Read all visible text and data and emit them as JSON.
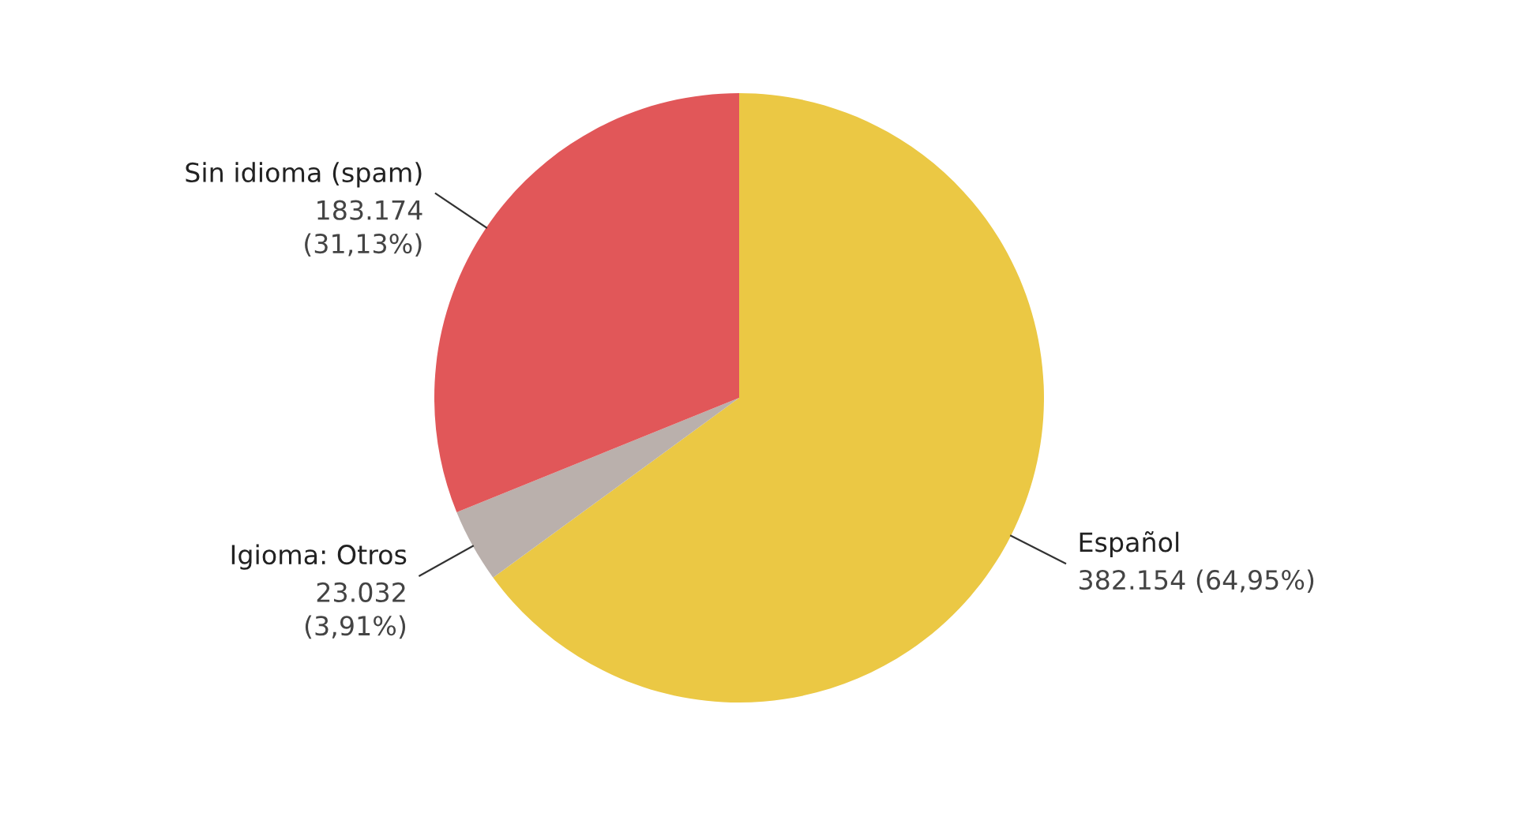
{
  "chart_data": {
    "type": "pie",
    "categories": [
      "Español",
      "Igioma: Otros",
      "Sin idioma (spam)"
    ],
    "values": [
      382154,
      23032,
      183174
    ],
    "colors": [
      "#ebc844",
      "#bab0ac",
      "#e15759"
    ],
    "value_labels": [
      "382.154 (64,95%)",
      "23.032\n(3,91%)",
      "183.174\n(31,13%)"
    ],
    "legend": false
  }
}
